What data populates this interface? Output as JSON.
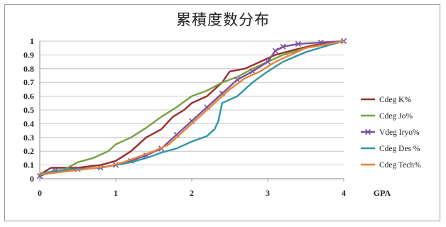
{
  "chart_data": {
    "type": "line",
    "title": "累積度数分布",
    "xlabel": "GPA",
    "ylabel": "",
    "xlim": [
      0,
      4
    ],
    "ylim": [
      0,
      1
    ],
    "xticks": [
      "0",
      "1",
      "2",
      "3",
      "4"
    ],
    "yticks": [
      "0",
      "0.1",
      "0.2",
      "0.3",
      "0.4",
      "0.5",
      "0.6",
      "0.7",
      "0.8",
      "0.9",
      "1"
    ],
    "grid": true,
    "legend": "right",
    "series": [
      {
        "name": "Cdeg K%",
        "color": "#9b2d30",
        "marker": "none",
        "points": [
          [
            0,
            0.03
          ],
          [
            0.15,
            0.08
          ],
          [
            0.5,
            0.08
          ],
          [
            0.8,
            0.1
          ],
          [
            1.0,
            0.13
          ],
          [
            1.2,
            0.2
          ],
          [
            1.4,
            0.3
          ],
          [
            1.6,
            0.36
          ],
          [
            1.75,
            0.45
          ],
          [
            1.9,
            0.5
          ],
          [
            2.0,
            0.55
          ],
          [
            2.2,
            0.6
          ],
          [
            2.4,
            0.7
          ],
          [
            2.5,
            0.78
          ],
          [
            2.7,
            0.8
          ],
          [
            2.9,
            0.85
          ],
          [
            3.1,
            0.9
          ],
          [
            3.3,
            0.93
          ],
          [
            3.6,
            0.97
          ],
          [
            4.0,
            1.0
          ]
        ]
      },
      {
        "name": "Cdeg Jo%",
        "color": "#78a040",
        "marker": "none",
        "points": [
          [
            0,
            0.04
          ],
          [
            0.3,
            0.06
          ],
          [
            0.5,
            0.12
          ],
          [
            0.7,
            0.15
          ],
          [
            0.9,
            0.2
          ],
          [
            1.0,
            0.25
          ],
          [
            1.2,
            0.3
          ],
          [
            1.4,
            0.37
          ],
          [
            1.6,
            0.45
          ],
          [
            1.8,
            0.52
          ],
          [
            2.0,
            0.6
          ],
          [
            2.2,
            0.64
          ],
          [
            2.4,
            0.7
          ],
          [
            2.6,
            0.74
          ],
          [
            2.8,
            0.8
          ],
          [
            3.0,
            0.85
          ],
          [
            3.2,
            0.9
          ],
          [
            3.5,
            0.95
          ],
          [
            3.8,
            0.98
          ],
          [
            4.0,
            1.0
          ]
        ]
      },
      {
        "name": "Vdeg Iryo%",
        "color": "#7a4fa0",
        "marker": "x",
        "points": [
          [
            0,
            0.02
          ],
          [
            0.2,
            0.06
          ],
          [
            0.5,
            0.07
          ],
          [
            0.8,
            0.08
          ],
          [
            1.0,
            0.1
          ],
          [
            1.2,
            0.13
          ],
          [
            1.4,
            0.17
          ],
          [
            1.6,
            0.22
          ],
          [
            1.8,
            0.32
          ],
          [
            2.0,
            0.42
          ],
          [
            2.2,
            0.52
          ],
          [
            2.4,
            0.62
          ],
          [
            2.6,
            0.72
          ],
          [
            2.8,
            0.78
          ],
          [
            3.0,
            0.85
          ],
          [
            3.1,
            0.93
          ],
          [
            3.2,
            0.96
          ],
          [
            3.4,
            0.98
          ],
          [
            3.7,
            0.99
          ],
          [
            4.0,
            1.0
          ]
        ]
      },
      {
        "name": "Cdeg Des %",
        "color": "#2f97a8",
        "marker": "none",
        "points": [
          [
            0,
            0.03
          ],
          [
            0.2,
            0.06
          ],
          [
            0.5,
            0.07
          ],
          [
            0.8,
            0.08
          ],
          [
            1.0,
            0.1
          ],
          [
            1.2,
            0.12
          ],
          [
            1.4,
            0.15
          ],
          [
            1.6,
            0.19
          ],
          [
            1.8,
            0.22
          ],
          [
            2.0,
            0.27
          ],
          [
            2.2,
            0.31
          ],
          [
            2.3,
            0.36
          ],
          [
            2.35,
            0.42
          ],
          [
            2.4,
            0.55
          ],
          [
            2.6,
            0.6
          ],
          [
            2.8,
            0.7
          ],
          [
            3.0,
            0.78
          ],
          [
            3.2,
            0.85
          ],
          [
            3.5,
            0.92
          ],
          [
            3.8,
            0.97
          ],
          [
            4.0,
            1.0
          ]
        ]
      },
      {
        "name": "Cdeg Tech%",
        "color": "#e8843a",
        "marker": "none",
        "points": [
          [
            0,
            0.03
          ],
          [
            0.3,
            0.05
          ],
          [
            0.6,
            0.07
          ],
          [
            0.9,
            0.09
          ],
          [
            1.1,
            0.12
          ],
          [
            1.3,
            0.16
          ],
          [
            1.5,
            0.2
          ],
          [
            1.7,
            0.25
          ],
          [
            1.9,
            0.35
          ],
          [
            2.1,
            0.45
          ],
          [
            2.3,
            0.55
          ],
          [
            2.5,
            0.65
          ],
          [
            2.7,
            0.73
          ],
          [
            2.9,
            0.78
          ],
          [
            3.1,
            0.85
          ],
          [
            3.3,
            0.9
          ],
          [
            3.5,
            0.95
          ],
          [
            3.8,
            0.98
          ],
          [
            4.0,
            1.0
          ]
        ]
      }
    ]
  }
}
